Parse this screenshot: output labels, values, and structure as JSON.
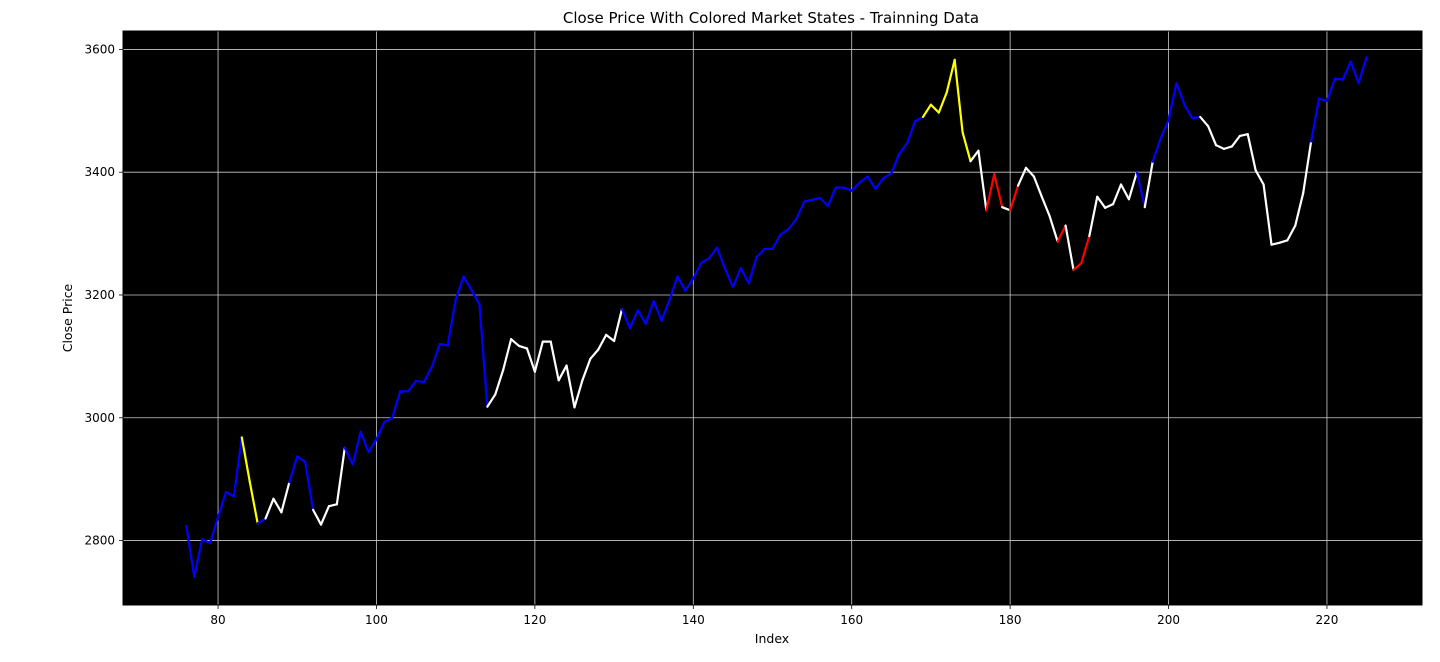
{
  "chart_data": {
    "type": "line",
    "title": "Close Price With Colored Market States  -  Trainning Data",
    "xlabel": "Index",
    "ylabel": "Close Price",
    "xlim": [
      68,
      232
    ],
    "ylim": [
      2695,
      3630
    ],
    "xticks": [
      80,
      100,
      120,
      140,
      160,
      180,
      200,
      220
    ],
    "yticks": [
      2800,
      3000,
      3200,
      3400,
      3600
    ],
    "grid": true,
    "background": "#000000",
    "grid_color": "#cccccc",
    "state_colors": {
      "0": "#0000ff",
      "1": "#ffffff",
      "2": "#ffff00",
      "3": "#ff0000"
    },
    "x_start": 76,
    "values": [
      2824,
      2741,
      2802,
      2796,
      2838,
      2879,
      2872,
      2968,
      2896,
      2828,
      2836,
      2868,
      2846,
      2895,
      2937,
      2928,
      2850,
      2826,
      2856,
      2859,
      2951,
      2924,
      2977,
      2944,
      2965,
      2993,
      3000,
      3043,
      3043,
      3060,
      3058,
      3083,
      3120,
      3118,
      3192,
      3230,
      3208,
      3185,
      3018,
      3038,
      3078,
      3128,
      3117,
      3113,
      3075,
      3124,
      3124,
      3061,
      3085,
      3017,
      3061,
      3096,
      3111,
      3135,
      3125,
      3177,
      3146,
      3175,
      3153,
      3190,
      3158,
      3192,
      3230,
      3207,
      3227,
      3252,
      3260,
      3277,
      3243,
      3213,
      3244,
      3219,
      3262,
      3275,
      3275,
      3298,
      3307,
      3323,
      3352,
      3355,
      3358,
      3345,
      3375,
      3375,
      3370,
      3383,
      3393,
      3373,
      3390,
      3398,
      3430,
      3447,
      3483,
      3490,
      3510,
      3497,
      3530,
      3583,
      3465,
      3418,
      3435,
      3338,
      3397,
      3343,
      3338,
      3378,
      3407,
      3393,
      3360,
      3328,
      3287,
      3313,
      3241,
      3252,
      3296,
      3360,
      3342,
      3348,
      3380,
      3356,
      3400,
      3343,
      3417,
      3455,
      3485,
      3545,
      3510,
      3488,
      3490,
      3475,
      3444,
      3438,
      3442,
      3459,
      3462,
      3403,
      3380,
      3282,
      3285,
      3289,
      3313,
      3366,
      3450,
      3520,
      3516,
      3552,
      3551,
      3580,
      3545,
      3587
    ],
    "states": [
      0,
      0,
      0,
      0,
      0,
      0,
      0,
      2,
      2,
      0,
      1,
      1,
      1,
      0,
      0,
      0,
      1,
      1,
      1,
      1,
      0,
      0,
      0,
      0,
      0,
      0,
      0,
      0,
      0,
      0,
      0,
      0,
      0,
      0,
      0,
      0,
      0,
      0,
      1,
      1,
      1,
      1,
      1,
      1,
      1,
      1,
      1,
      1,
      1,
      1,
      1,
      1,
      1,
      1,
      1,
      0,
      0,
      0,
      0,
      0,
      0,
      0,
      0,
      0,
      0,
      0,
      0,
      0,
      0,
      0,
      0,
      0,
      0,
      0,
      0,
      0,
      0,
      0,
      0,
      0,
      0,
      0,
      0,
      0,
      0,
      0,
      0,
      0,
      0,
      0,
      0,
      0,
      0,
      2,
      2,
      2,
      2,
      2,
      2,
      1,
      1,
      3,
      3,
      1,
      3,
      1,
      1,
      1,
      1,
      1,
      3,
      1,
      3,
      3,
      1,
      1,
      1,
      1,
      1,
      1,
      0,
      1,
      0,
      0,
      0,
      0,
      0,
      0,
      1,
      1,
      1,
      1,
      1,
      1,
      1,
      1,
      1,
      1,
      1,
      1,
      1,
      1,
      0,
      0,
      0,
      0,
      0,
      0,
      0,
      0
    ]
  }
}
